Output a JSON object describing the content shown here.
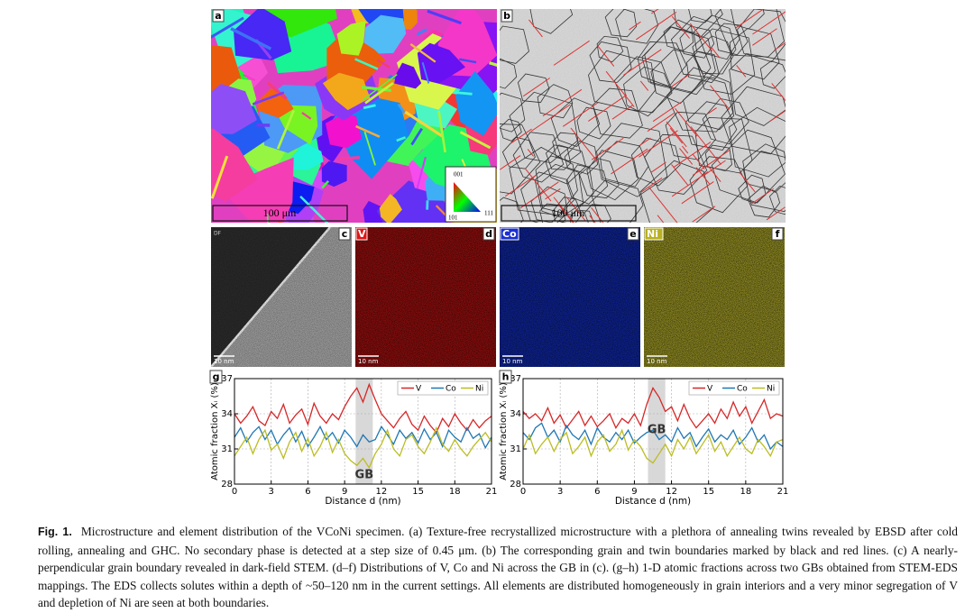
{
  "panels": [
    {
      "label": "a",
      "scale_bar": "100 μm",
      "ipf_key": [
        "001",
        "101",
        "111"
      ]
    },
    {
      "label": "b",
      "scale_bar": "100 μm"
    },
    {
      "label": "c",
      "scale_bar": "10 nm",
      "mode": "DF"
    },
    {
      "label": "d",
      "element": "V",
      "scale_bar": "10 nm"
    },
    {
      "label": "e",
      "element": "Co",
      "scale_bar": "10 nm"
    },
    {
      "label": "f",
      "element": "Ni",
      "scale_bar": "10 nm"
    }
  ],
  "chart_data": [
    {
      "type": "line",
      "label": "g",
      "xlabel": "Distance d (nm)",
      "ylabel": "Atomic fraction Xᵢ (%)",
      "x": [
        0,
        0.5,
        1,
        1.5,
        2,
        2.5,
        3,
        3.5,
        4,
        4.5,
        5,
        5.5,
        6,
        6.5,
        7,
        7.5,
        8,
        8.5,
        9,
        9.5,
        10,
        10.5,
        11,
        11.5,
        12,
        12.5,
        13,
        13.5,
        14,
        14.5,
        15,
        15.5,
        16,
        16.5,
        17,
        17.5,
        18,
        18.5,
        19,
        19.5,
        20,
        20.5,
        21
      ],
      "series": [
        {
          "name": "V",
          "color": "#d62728",
          "values": [
            34.0,
            33.2,
            33.8,
            34.6,
            33.4,
            33.0,
            34.2,
            33.6,
            34.8,
            33.2,
            33.9,
            34.4,
            33.1,
            34.9,
            33.8,
            33.2,
            34.0,
            33.5,
            34.6,
            35.5,
            36.2,
            35.0,
            36.5,
            35.2,
            34.0,
            33.4,
            32.8,
            33.6,
            34.2,
            33.1,
            32.6,
            33.8,
            33.0,
            32.4,
            33.6,
            32.9,
            34.0,
            33.2,
            32.6,
            33.5,
            32.8,
            33.4,
            33.8
          ]
        },
        {
          "name": "Co",
          "color": "#1f77b4",
          "values": [
            32.0,
            32.8,
            31.6,
            32.4,
            32.9,
            31.8,
            32.6,
            31.4,
            32.2,
            32.8,
            31.6,
            32.5,
            31.2,
            32.0,
            32.9,
            31.8,
            32.4,
            31.5,
            32.6,
            32.0,
            31.2,
            32.2,
            31.6,
            31.8,
            32.9,
            32.2,
            31.4,
            32.6,
            31.9,
            32.4,
            31.5,
            32.7,
            31.8,
            32.4,
            31.2,
            32.6,
            32.0,
            31.6,
            32.8,
            31.9,
            32.3,
            31.1,
            32.0
          ]
        },
        {
          "name": "Ni",
          "color": "#bcbd22",
          "values": [
            30.4,
            31.2,
            32.0,
            30.6,
            31.8,
            32.6,
            30.9,
            31.4,
            30.2,
            31.6,
            32.4,
            30.8,
            31.9,
            30.4,
            31.2,
            32.4,
            30.7,
            31.8,
            30.6,
            30.0,
            29.6,
            30.2,
            29.4,
            30.6,
            31.4,
            32.6,
            31.0,
            30.4,
            31.8,
            32.2,
            31.2,
            30.6,
            31.6,
            32.8,
            31.4,
            30.8,
            31.8,
            31.0,
            30.4,
            31.2,
            31.8,
            32.4,
            31.6
          ]
        }
      ],
      "xlim": [
        0,
        21
      ],
      "ylim": [
        28,
        37
      ],
      "xticks": [
        0,
        3,
        6,
        9,
        12,
        15,
        18,
        21
      ],
      "yticks": [
        28,
        31,
        34,
        37
      ],
      "grid": true,
      "legend": "upper right",
      "gb_band": [
        9.9,
        11.3
      ],
      "annotation": "GB"
    },
    {
      "type": "line",
      "label": "h",
      "xlabel": "Distance d (nm)",
      "ylabel": "Atomic fraction Xᵢ (%)",
      "x": [
        0,
        0.5,
        1,
        1.5,
        2,
        2.5,
        3,
        3.5,
        4,
        4.5,
        5,
        5.5,
        6,
        6.5,
        7,
        7.5,
        8,
        8.5,
        9,
        9.5,
        10,
        10.5,
        11,
        11.5,
        12,
        12.5,
        13,
        13.5,
        14,
        14.5,
        15,
        15.5,
        16,
        16.5,
        17,
        17.5,
        18,
        18.5,
        19,
        19.5,
        20,
        20.5,
        21
      ],
      "series": [
        {
          "name": "V",
          "color": "#d62728",
          "values": [
            34.2,
            33.6,
            34.0,
            33.4,
            34.5,
            33.2,
            33.9,
            32.8,
            33.5,
            34.2,
            33.0,
            33.8,
            32.9,
            33.4,
            34.0,
            32.8,
            33.6,
            33.2,
            34.0,
            33.0,
            34.8,
            36.2,
            35.4,
            34.2,
            34.6,
            33.4,
            34.8,
            33.6,
            32.8,
            33.4,
            34.0,
            33.2,
            34.4,
            33.6,
            35.0,
            33.8,
            34.6,
            33.2,
            34.2,
            35.2,
            33.6,
            34.0,
            33.8
          ]
        },
        {
          "name": "Co",
          "color": "#1f77b4",
          "values": [
            32.4,
            31.8,
            32.8,
            33.2,
            32.0,
            32.6,
            31.6,
            33.0,
            32.2,
            31.8,
            32.6,
            31.4,
            32.8,
            32.0,
            31.6,
            32.4,
            31.8,
            32.6,
            31.5,
            32.0,
            32.4,
            32.6,
            31.8,
            32.2,
            31.6,
            32.8,
            31.9,
            32.4,
            31.2,
            32.0,
            32.7,
            31.6,
            32.2,
            31.8,
            32.6,
            31.4,
            32.0,
            32.8,
            31.6,
            32.2,
            31.0,
            31.6,
            31.2
          ]
        },
        {
          "name": "Ni",
          "color": "#bcbd22",
          "values": [
            31.0,
            32.2,
            30.6,
            31.4,
            32.0,
            30.8,
            31.8,
            32.4,
            30.6,
            31.2,
            32.0,
            30.4,
            31.6,
            32.2,
            30.8,
            31.4,
            32.6,
            30.9,
            31.8,
            31.2,
            30.2,
            29.8,
            30.6,
            31.4,
            30.4,
            31.8,
            31.0,
            32.0,
            30.6,
            31.4,
            32.2,
            30.8,
            31.6,
            30.4,
            31.2,
            32.0,
            31.0,
            30.6,
            31.8,
            31.2,
            30.4,
            31.6,
            31.8
          ]
        }
      ],
      "xlim": [
        0,
        21
      ],
      "ylim": [
        28,
        37
      ],
      "xticks": [
        0,
        3,
        6,
        9,
        12,
        15,
        18,
        21
      ],
      "yticks": [
        28,
        31,
        34,
        37
      ],
      "grid": true,
      "legend": "upper right",
      "gb_band": [
        10.1,
        11.5
      ],
      "annotation": "GB"
    }
  ],
  "caption": {
    "label": "Fig. 1.",
    "text": "Microstructure and element distribution of the VCoNi specimen. (a) Texture-free recrystallized microstructure with a plethora of annealing twins revealed by EBSD after cold rolling, annealing and GHC. No secondary phase is detected at a step size of 0.45 μm. (b) The corresponding grain and twin boundaries marked by black and red lines. (c) A nearly-perpendicular grain boundary revealed in dark-field STEM. (d–f) Distributions of V, Co and Ni across the GB in (c). (g–h) 1-D atomic fractions across two GBs obtained from STEM-EDS mappings. The EDS collects solutes within a depth of ~50–120 nm in the current settings. All elements are distributed homogeneously in grain interiors and a very minor segregation of V and depletion of Ni are seen at both boundaries."
  }
}
